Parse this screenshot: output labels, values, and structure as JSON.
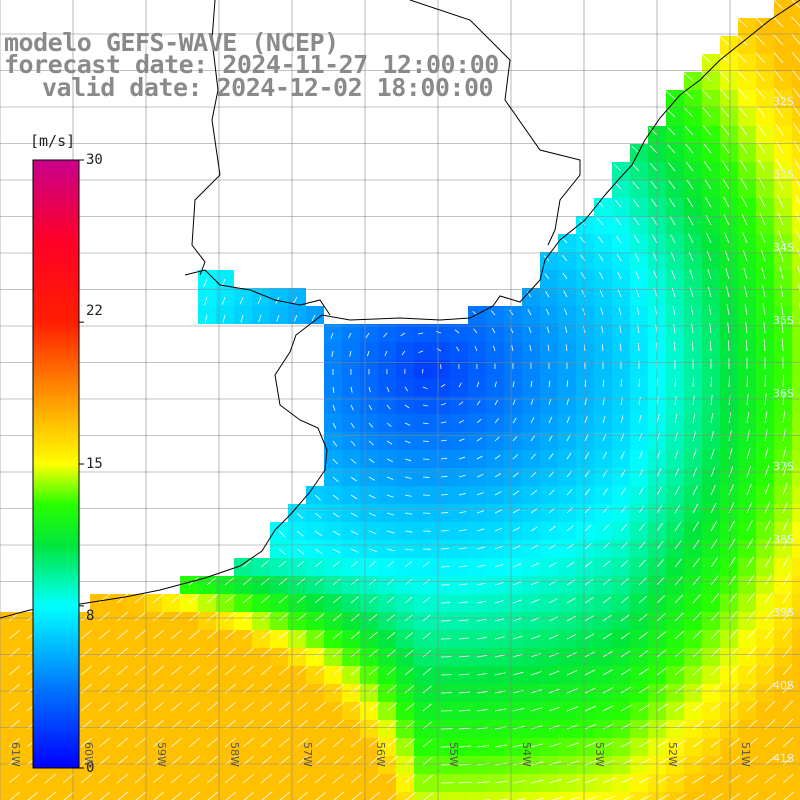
{
  "title": {
    "line1": "modelo GEFS-WAVE (NCEP)",
    "line2": "forecast date: 2024-11-27 12:00:00",
    "line3": "valid date: 2024-12-02 18:00:00"
  },
  "colorbar": {
    "unit": "[m/s]",
    "ticks": [
      "30",
      "22",
      "15",
      "8",
      "0"
    ],
    "tick_values": [
      30,
      22,
      15,
      8,
      0
    ],
    "min": 0,
    "max": 30,
    "colors": [
      "#0000ff",
      "#00aaff",
      "#00ffff",
      "#00ff00",
      "#ffff00",
      "#ff8000",
      "#ff0000",
      "#cc0088"
    ]
  },
  "map": {
    "lat_labels": [
      "32S",
      "33S",
      "34S",
      "35S",
      "36S",
      "37S",
      "38S",
      "39S",
      "40S",
      "41S"
    ],
    "lon_labels": [
      "61W",
      "60W",
      "59W",
      "58W",
      "57W",
      "56W",
      "55W",
      "54W",
      "53W",
      "52W",
      "51W"
    ],
    "land_color": "#ffffff",
    "grid_color": "#888888",
    "coast_color": "#000000",
    "arrow_color": "#ffffff"
  }
}
